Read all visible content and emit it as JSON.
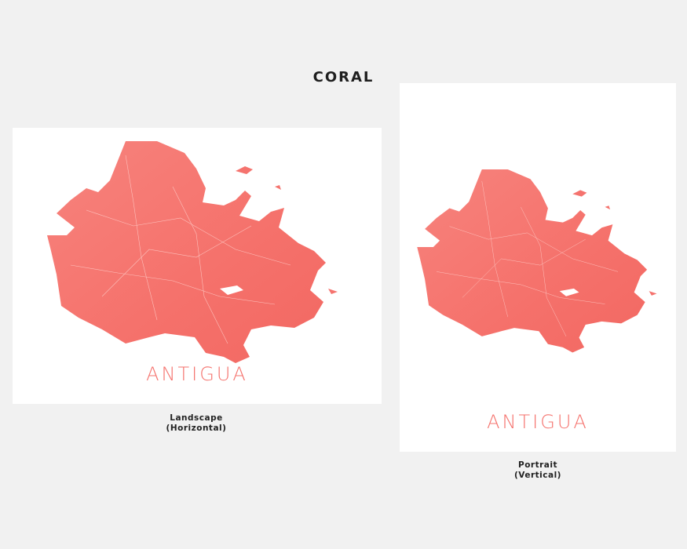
{
  "title": "CORAL",
  "accent_color": "#f5736e",
  "prints": [
    {
      "map_label": "ANTIGUA",
      "caption_line1": "Landscape",
      "caption_line2": "(Horizontal)"
    },
    {
      "map_label": "ANTIGUA",
      "caption_line1": "Portrait",
      "caption_line2": "(Vertical)"
    }
  ]
}
